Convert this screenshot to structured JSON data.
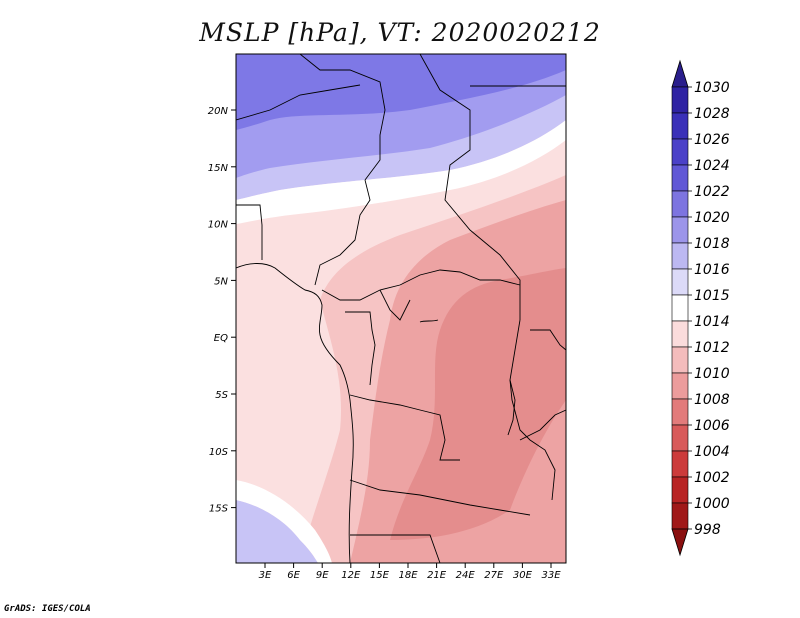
{
  "title": "MSLP [hPa], VT: 2020020212",
  "footer": "GrADS: IGES/COLA",
  "map": {
    "lat_labels": [
      "20N",
      "15N",
      "10N",
      "5N",
      "EQ",
      "5S",
      "10S",
      "15S"
    ],
    "lon_labels": [
      "3E",
      "6E",
      "9E",
      "12E",
      "15E",
      "18E",
      "21E",
      "24E",
      "27E",
      "30E",
      "33E"
    ]
  },
  "colorbar": {
    "levels": [
      "1030",
      "1028",
      "1026",
      "1024",
      "1022",
      "1020",
      "1018",
      "1016",
      "1015",
      "1014",
      "1012",
      "1010",
      "1008",
      "1006",
      "1004",
      "1002",
      "1000",
      "998"
    ],
    "colors": [
      "#2a1e8c",
      "#2f23a3",
      "#3a30b8",
      "#4b41c8",
      "#6158d6",
      "#7d74e0",
      "#9c95ea",
      "#bcb8f2",
      "#dcdaf8",
      "#ffffff",
      "#fbdcdc",
      "#f4bcbc",
      "#ec9c9c",
      "#e27b7b",
      "#d85a5a",
      "#cc3b3b",
      "#b82424",
      "#a01818",
      "#8a1010"
    ]
  },
  "fields": {
    "blue_deep": "#7e78e6",
    "blue_mid": "#a29cf0",
    "blue_light": "#c8c4f6",
    "white": "#ffffff",
    "pink_pale": "#fbe0e0",
    "pink_light": "#f6c4c4",
    "red_soft": "#eda3a3",
    "red_mid": "#e48d8d"
  }
}
